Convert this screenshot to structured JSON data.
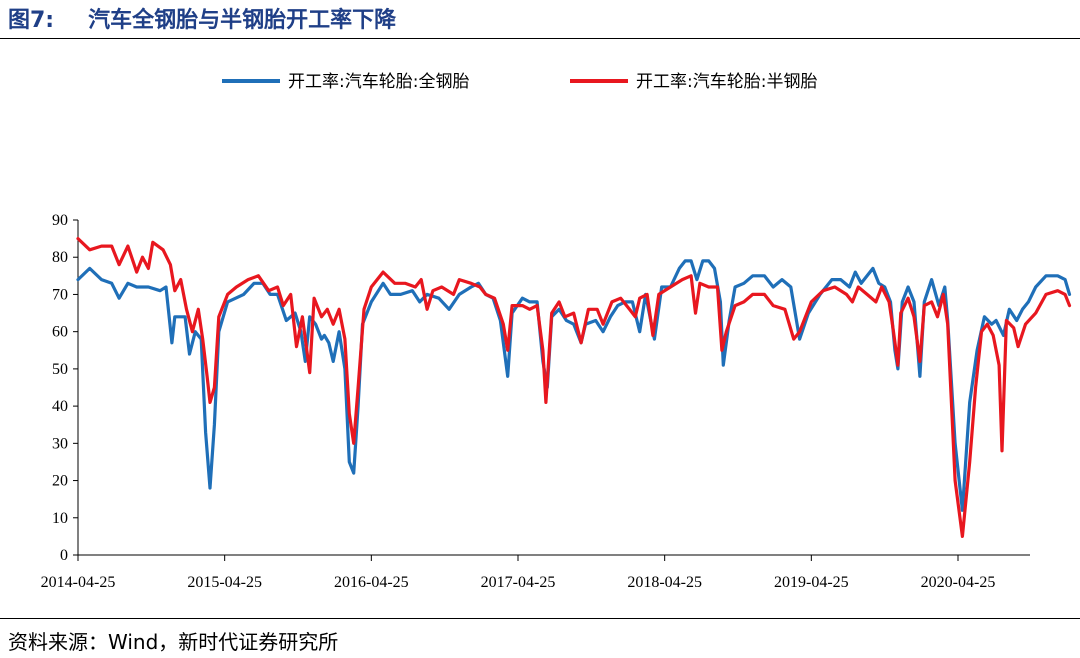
{
  "header": {
    "figure_no": "图7:",
    "title": "汽车全钢胎与半钢胎开工率下降"
  },
  "source": "资料来源：Wind，新时代证券研究所",
  "chart_data": {
    "type": "line",
    "title": "汽车全钢胎与半钢胎开工率下降",
    "xlabel": "",
    "ylabel": "",
    "ylim": [
      0,
      90
    ],
    "yticks": [
      0,
      10,
      20,
      30,
      40,
      50,
      60,
      70,
      80,
      90
    ],
    "xticks": [
      "2014-04-25",
      "2015-04-25",
      "2016-04-25",
      "2017-04-25",
      "2018-04-25",
      "2019-04-25",
      "2020-04-25"
    ],
    "xlim": [
      2014.32,
      2020.8
    ],
    "legend_position": "top-center",
    "grid": false,
    "series": [
      {
        "name": "开工率:汽车轮胎:全钢胎",
        "color": "#1f6fb8",
        "points": [
          [
            2014.32,
            74
          ],
          [
            2014.4,
            77
          ],
          [
            2014.48,
            74
          ],
          [
            2014.55,
            73
          ],
          [
            2014.6,
            69
          ],
          [
            2014.66,
            73
          ],
          [
            2014.72,
            72
          ],
          [
            2014.8,
            72
          ],
          [
            2014.88,
            71
          ],
          [
            2014.92,
            72
          ],
          [
            2014.96,
            57
          ],
          [
            2014.98,
            64
          ],
          [
            2015.05,
            64
          ],
          [
            2015.08,
            54
          ],
          [
            2015.12,
            60
          ],
          [
            2015.16,
            58
          ],
          [
            2015.19,
            33
          ],
          [
            2015.22,
            18
          ],
          [
            2015.25,
            35
          ],
          [
            2015.28,
            60
          ],
          [
            2015.34,
            68
          ],
          [
            2015.45,
            70
          ],
          [
            2015.52,
            73
          ],
          [
            2015.58,
            73
          ],
          [
            2015.63,
            70
          ],
          [
            2015.68,
            70
          ],
          [
            2015.74,
            63
          ],
          [
            2015.8,
            65
          ],
          [
            2015.84,
            60
          ],
          [
            2015.87,
            52
          ],
          [
            2015.9,
            64
          ],
          [
            2015.94,
            62
          ],
          [
            2015.98,
            58
          ],
          [
            2016.0,
            59
          ],
          [
            2016.03,
            57
          ],
          [
            2016.06,
            52
          ],
          [
            2016.1,
            60
          ],
          [
            2016.14,
            50
          ],
          [
            2016.17,
            25
          ],
          [
            2016.2,
            22
          ],
          [
            2016.23,
            40
          ],
          [
            2016.26,
            62
          ],
          [
            2016.32,
            68
          ],
          [
            2016.4,
            73
          ],
          [
            2016.45,
            70
          ],
          [
            2016.52,
            70
          ],
          [
            2016.6,
            71
          ],
          [
            2016.65,
            68
          ],
          [
            2016.7,
            70
          ],
          [
            2016.78,
            69
          ],
          [
            2016.85,
            66
          ],
          [
            2016.92,
            70
          ],
          [
            2017.0,
            72
          ],
          [
            2017.05,
            73
          ],
          [
            2017.1,
            70
          ],
          [
            2017.15,
            69
          ],
          [
            2017.2,
            63
          ],
          [
            2017.25,
            48
          ],
          [
            2017.28,
            65
          ],
          [
            2017.35,
            69
          ],
          [
            2017.4,
            68
          ],
          [
            2017.45,
            68
          ],
          [
            2017.49,
            52
          ],
          [
            2017.52,
            45
          ],
          [
            2017.55,
            64
          ],
          [
            2017.6,
            66
          ],
          [
            2017.65,
            63
          ],
          [
            2017.7,
            62
          ],
          [
            2017.75,
            57
          ],
          [
            2017.78,
            62
          ],
          [
            2017.85,
            63
          ],
          [
            2017.9,
            60
          ],
          [
            2017.95,
            64
          ],
          [
            2018.0,
            67
          ],
          [
            2018.05,
            68
          ],
          [
            2018.1,
            68
          ],
          [
            2018.15,
            60
          ],
          [
            2018.19,
            70
          ],
          [
            2018.25,
            58
          ],
          [
            2018.3,
            72
          ],
          [
            2018.36,
            72
          ],
          [
            2018.42,
            77
          ],
          [
            2018.46,
            79
          ],
          [
            2018.5,
            79
          ],
          [
            2018.54,
            74
          ],
          [
            2018.58,
            79
          ],
          [
            2018.62,
            79
          ],
          [
            2018.66,
            77
          ],
          [
            2018.7,
            68
          ],
          [
            2018.72,
            51
          ],
          [
            2018.76,
            63
          ],
          [
            2018.8,
            72
          ],
          [
            2018.86,
            73
          ],
          [
            2018.92,
            75
          ],
          [
            2019.0,
            75
          ],
          [
            2019.06,
            72
          ],
          [
            2019.12,
            74
          ],
          [
            2019.18,
            72
          ],
          [
            2019.24,
            58
          ],
          [
            2019.3,
            65
          ],
          [
            2019.38,
            70
          ],
          [
            2019.46,
            74
          ],
          [
            2019.52,
            74
          ],
          [
            2019.58,
            72
          ],
          [
            2019.62,
            76
          ],
          [
            2019.66,
            73
          ],
          [
            2019.7,
            75
          ],
          [
            2019.74,
            77
          ],
          [
            2019.78,
            73
          ],
          [
            2019.82,
            72
          ],
          [
            2019.86,
            68
          ],
          [
            2019.89,
            55
          ],
          [
            2019.91,
            50
          ],
          [
            2019.94,
            68
          ],
          [
            2019.98,
            72
          ],
          [
            2020.02,
            68
          ],
          [
            2020.06,
            48
          ],
          [
            2020.09,
            68
          ],
          [
            2020.14,
            74
          ],
          [
            2020.19,
            67
          ],
          [
            2020.23,
            72
          ],
          [
            2020.25,
            63
          ],
          [
            2020.3,
            30
          ],
          [
            2020.35,
            12
          ],
          [
            2020.4,
            41
          ],
          [
            2020.45,
            55
          ],
          [
            2020.5,
            64
          ],
          [
            2020.55,
            62
          ],
          [
            2020.58,
            63
          ],
          [
            2020.63,
            59
          ],
          [
            2020.67,
            66
          ],
          [
            2020.72,
            63
          ],
          [
            2020.76,
            66
          ],
          [
            2020.8,
            68
          ],
          [
            2020.85,
            72
          ],
          [
            2020.92,
            75
          ],
          [
            2021.0,
            75
          ],
          [
            2021.05,
            74
          ],
          [
            2021.08,
            70
          ]
        ]
      },
      {
        "name": "开工率:汽车轮胎:半钢胎",
        "color": "#e8171f",
        "points": [
          [
            2014.32,
            85
          ],
          [
            2014.4,
            82
          ],
          [
            2014.48,
            83
          ],
          [
            2014.55,
            83
          ],
          [
            2014.6,
            78
          ],
          [
            2014.66,
            83
          ],
          [
            2014.72,
            76
          ],
          [
            2014.76,
            80
          ],
          [
            2014.8,
            77
          ],
          [
            2014.83,
            84
          ],
          [
            2014.9,
            82
          ],
          [
            2014.95,
            78
          ],
          [
            2014.98,
            71
          ],
          [
            2015.02,
            74
          ],
          [
            2015.06,
            66
          ],
          [
            2015.1,
            60
          ],
          [
            2015.14,
            66
          ],
          [
            2015.17,
            58
          ],
          [
            2015.2,
            48
          ],
          [
            2015.22,
            41
          ],
          [
            2015.25,
            45
          ],
          [
            2015.28,
            64
          ],
          [
            2015.34,
            70
          ],
          [
            2015.4,
            72
          ],
          [
            2015.48,
            74
          ],
          [
            2015.55,
            75
          ],
          [
            2015.62,
            71
          ],
          [
            2015.68,
            72
          ],
          [
            2015.72,
            67
          ],
          [
            2015.77,
            70
          ],
          [
            2015.81,
            56
          ],
          [
            2015.85,
            64
          ],
          [
            2015.9,
            49
          ],
          [
            2015.93,
            69
          ],
          [
            2015.98,
            64
          ],
          [
            2016.02,
            66
          ],
          [
            2016.06,
            62
          ],
          [
            2016.1,
            66
          ],
          [
            2016.14,
            58
          ],
          [
            2016.17,
            38
          ],
          [
            2016.2,
            30
          ],
          [
            2016.23,
            45
          ],
          [
            2016.27,
            66
          ],
          [
            2016.32,
            72
          ],
          [
            2016.4,
            76
          ],
          [
            2016.48,
            73
          ],
          [
            2016.55,
            73
          ],
          [
            2016.62,
            72
          ],
          [
            2016.66,
            74
          ],
          [
            2016.7,
            66
          ],
          [
            2016.74,
            71
          ],
          [
            2016.8,
            72
          ],
          [
            2016.88,
            70
          ],
          [
            2016.92,
            74
          ],
          [
            2017.0,
            73
          ],
          [
            2017.06,
            72
          ],
          [
            2017.1,
            70
          ],
          [
            2017.16,
            69
          ],
          [
            2017.22,
            62
          ],
          [
            2017.25,
            55
          ],
          [
            2017.28,
            67
          ],
          [
            2017.35,
            67
          ],
          [
            2017.4,
            66
          ],
          [
            2017.45,
            67
          ],
          [
            2017.49,
            55
          ],
          [
            2017.51,
            41
          ],
          [
            2017.55,
            65
          ],
          [
            2017.6,
            68
          ],
          [
            2017.64,
            64
          ],
          [
            2017.7,
            65
          ],
          [
            2017.75,
            57
          ],
          [
            2017.8,
            66
          ],
          [
            2017.86,
            66
          ],
          [
            2017.9,
            62
          ],
          [
            2017.96,
            68
          ],
          [
            2018.02,
            69
          ],
          [
            2018.08,
            66
          ],
          [
            2018.12,
            64
          ],
          [
            2018.15,
            69
          ],
          [
            2018.2,
            70
          ],
          [
            2018.24,
            59
          ],
          [
            2018.28,
            70
          ],
          [
            2018.36,
            72
          ],
          [
            2018.44,
            74
          ],
          [
            2018.5,
            75
          ],
          [
            2018.53,
            65
          ],
          [
            2018.56,
            73
          ],
          [
            2018.62,
            72
          ],
          [
            2018.68,
            72
          ],
          [
            2018.71,
            55
          ],
          [
            2018.74,
            60
          ],
          [
            2018.8,
            67
          ],
          [
            2018.86,
            68
          ],
          [
            2018.92,
            70
          ],
          [
            2019.0,
            70
          ],
          [
            2019.06,
            67
          ],
          [
            2019.14,
            66
          ],
          [
            2019.2,
            58
          ],
          [
            2019.24,
            60
          ],
          [
            2019.32,
            68
          ],
          [
            2019.4,
            71
          ],
          [
            2019.48,
            72
          ],
          [
            2019.56,
            70
          ],
          [
            2019.6,
            68
          ],
          [
            2019.64,
            72
          ],
          [
            2019.7,
            70
          ],
          [
            2019.76,
            68
          ],
          [
            2019.8,
            72
          ],
          [
            2019.85,
            68
          ],
          [
            2019.88,
            60
          ],
          [
            2019.91,
            51
          ],
          [
            2019.93,
            65
          ],
          [
            2019.98,
            69
          ],
          [
            2020.02,
            64
          ],
          [
            2020.06,
            52
          ],
          [
            2020.09,
            67
          ],
          [
            2020.14,
            68
          ],
          [
            2020.18,
            64
          ],
          [
            2020.22,
            70
          ],
          [
            2020.25,
            62
          ],
          [
            2020.3,
            20
          ],
          [
            2020.35,
            5
          ],
          [
            2020.4,
            25
          ],
          [
            2020.44,
            45
          ],
          [
            2020.48,
            60
          ],
          [
            2020.52,
            62
          ],
          [
            2020.56,
            59
          ],
          [
            2020.6,
            51
          ],
          [
            2020.62,
            28
          ],
          [
            2020.65,
            63
          ],
          [
            2020.7,
            61
          ],
          [
            2020.73,
            56
          ],
          [
            2020.78,
            62
          ],
          [
            2020.85,
            65
          ],
          [
            2020.92,
            70
          ],
          [
            2021.0,
            71
          ],
          [
            2021.05,
            70
          ],
          [
            2021.08,
            67
          ]
        ]
      }
    ]
  }
}
